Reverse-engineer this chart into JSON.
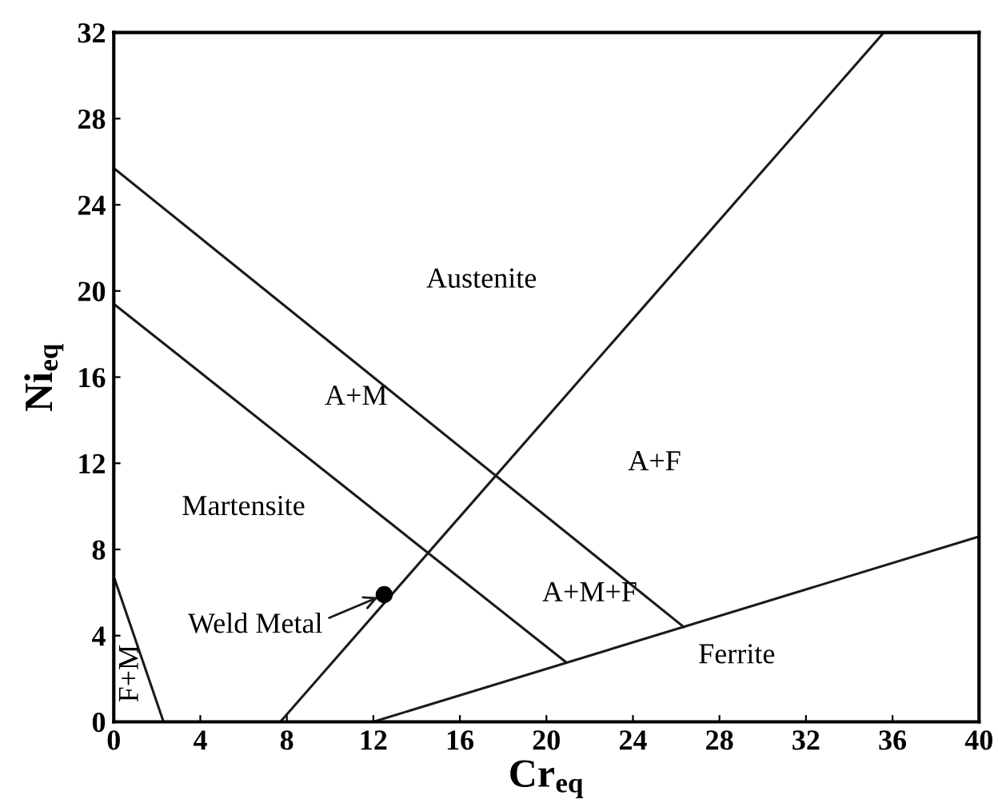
{
  "chart_data": {
    "type": "line",
    "xlabel": "Cr$_{eq}$",
    "ylabel": "Ni$_{eq}$",
    "xlim": [
      0,
      40
    ],
    "ylim": [
      0,
      32
    ],
    "xticks": [
      0,
      4,
      8,
      12,
      16,
      20,
      24,
      28,
      32,
      36,
      40
    ],
    "yticks": [
      0,
      4,
      8,
      12,
      16,
      20,
      24,
      28,
      32
    ],
    "grid": false,
    "legend": false,
    "series": [
      {
        "color": "#1a1a1a",
        "x": [
          0,
          26.35
        ],
        "values": [
          25.7,
          4.4
        ]
      },
      {
        "color": "#1a1a1a",
        "x": [
          0,
          20.9
        ],
        "values": [
          19.4,
          2.77
        ]
      },
      {
        "color": "#1a1a1a",
        "x": [
          7.7,
          35.6
        ],
        "values": [
          0,
          32
        ]
      },
      {
        "color": "#1a1a1a",
        "x": [
          12,
          40
        ],
        "values": [
          0,
          8.6
        ]
      },
      {
        "color": "#1a1a1a",
        "x": [
          0.05,
          2.3
        ],
        "values": [
          6.6,
          0
        ]
      },
      {
        "type": "scatter",
        "color": "#000000",
        "x": [
          12.5
        ],
        "values": [
          5.9
        ],
        "marker": "circle"
      }
    ],
    "annotations": [
      "Austenite",
      "A+M",
      "A+F",
      "Martensite",
      "A+M+F",
      "Ferrite",
      "F+M",
      {
        "text": "Weld Metal",
        "x": 12.5,
        "y": 5.9
      }
    ]
  }
}
